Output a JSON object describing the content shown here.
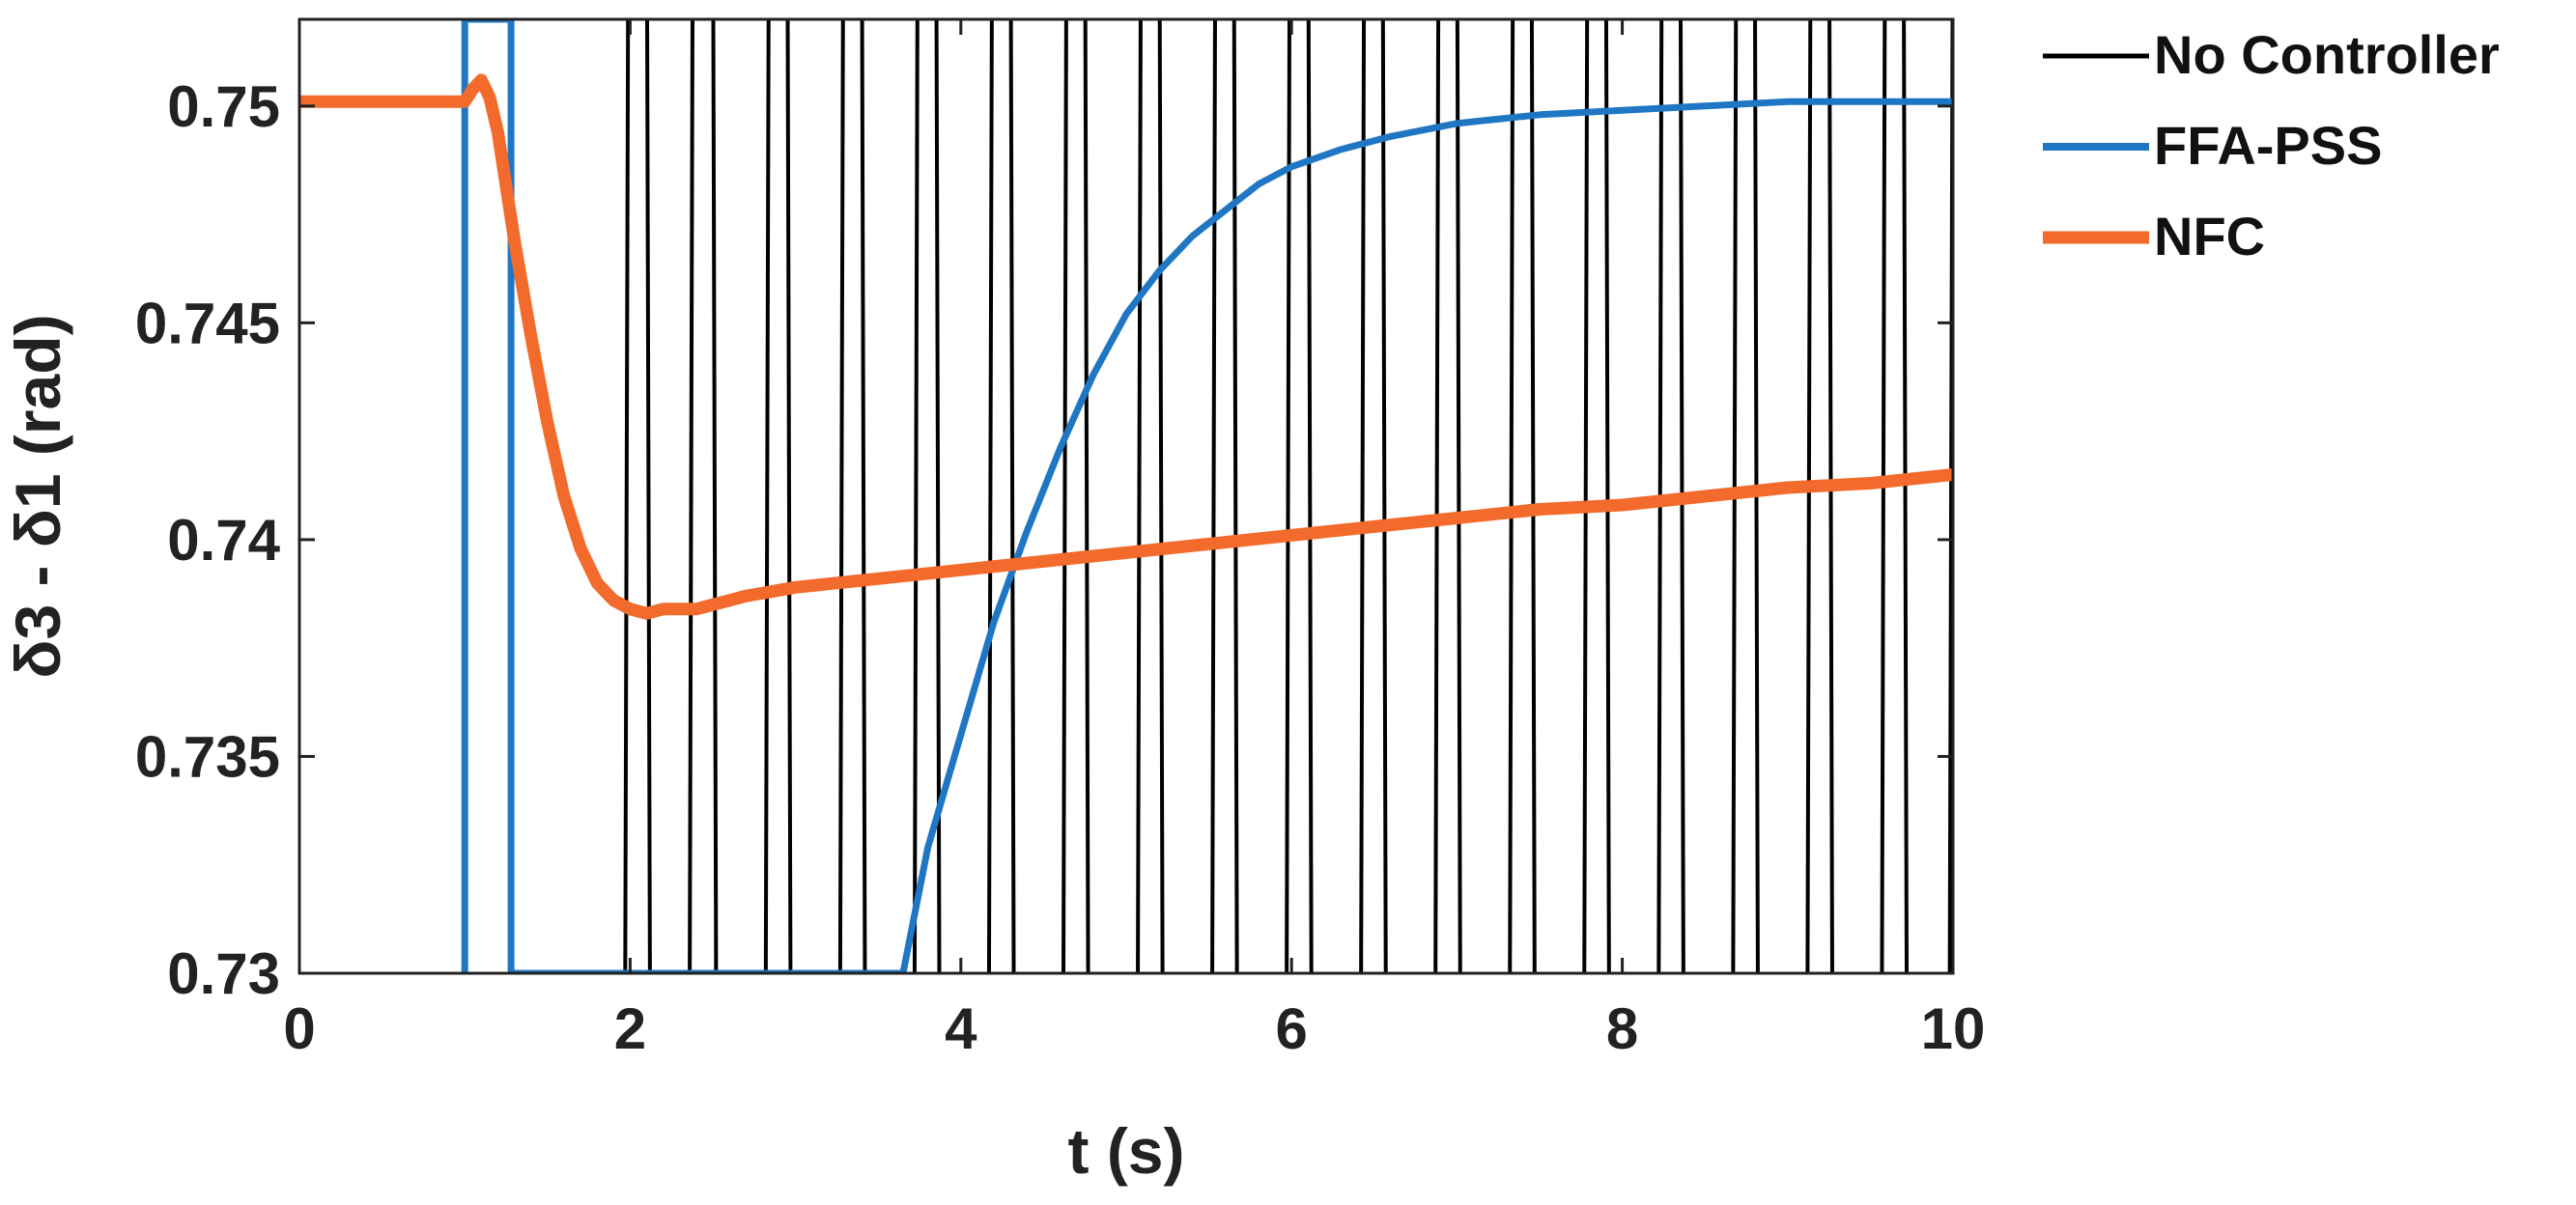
{
  "chart_data": {
    "type": "line",
    "title": "",
    "xlabel": "t (s)",
    "ylabel": "δ3 - δ1 (rad)",
    "xlim": [
      0,
      10
    ],
    "ylim": [
      0.73,
      0.752
    ],
    "xticks": [
      0,
      2,
      4,
      6,
      8,
      10
    ],
    "yticks": [
      0.73,
      0.735,
      0.74,
      0.745,
      0.75
    ],
    "xtick_labels": [
      "0",
      "2",
      "4",
      "6",
      "8",
      "10"
    ],
    "ytick_labels": [
      "0.73",
      "0.735",
      "0.74",
      "0.745",
      "0.75"
    ],
    "grid": false,
    "legend_position": "outside-right-top",
    "series": [
      {
        "name": "No Controller",
        "color": "#000000",
        "style": "vertical-oscillation",
        "crossings_x": [
          1.97,
          2.12,
          2.36,
          2.52,
          2.82,
          2.97,
          3.27,
          3.42,
          3.72,
          3.87,
          4.17,
          4.32,
          4.62,
          4.77,
          5.07,
          5.22,
          5.52,
          5.67,
          5.97,
          6.12,
          6.42,
          6.57,
          6.87,
          7.02,
          7.32,
          7.47,
          7.77,
          7.92,
          8.22,
          8.37,
          8.67,
          8.82,
          9.12,
          9.27,
          9.57,
          9.72,
          9.98
        ]
      },
      {
        "name": "FFA-PSS",
        "color": "#1f77c4",
        "x": [
          1.0,
          1.0,
          1.28,
          1.28,
          3.65,
          3.8,
          4.0,
          4.2,
          4.4,
          4.6,
          4.8,
          5.0,
          5.2,
          5.4,
          5.6,
          5.8,
          6.0,
          6.3,
          6.6,
          7.0,
          7.5,
          8.0,
          8.5,
          9.0,
          10.0
        ],
        "y": [
          0.73,
          0.752,
          0.752,
          0.73,
          0.73,
          0.7329,
          0.7355,
          0.7381,
          0.7402,
          0.7421,
          0.7438,
          0.7452,
          0.7462,
          0.747,
          0.7476,
          0.7482,
          0.7486,
          0.749,
          0.7493,
          0.7496,
          0.7498,
          0.7499,
          0.75,
          0.7501,
          0.7501
        ]
      },
      {
        "name": "NFC",
        "color": "#f26b2c",
        "x": [
          0,
          0.5,
          1.0,
          1.05,
          1.1,
          1.15,
          1.2,
          1.3,
          1.4,
          1.5,
          1.6,
          1.7,
          1.8,
          1.9,
          2.0,
          2.1,
          2.2,
          2.3,
          2.4,
          2.5,
          2.7,
          3.0,
          3.5,
          4.0,
          4.5,
          5.0,
          5.5,
          6.0,
          6.5,
          7.0,
          7.5,
          8.0,
          8.5,
          9.0,
          9.5,
          10.0
        ],
        "y": [
          0.7501,
          0.7501,
          0.7501,
          0.7504,
          0.7506,
          0.7502,
          0.7494,
          0.7469,
          0.7447,
          0.7427,
          0.741,
          0.7398,
          0.739,
          0.7386,
          0.7384,
          0.7383,
          0.7384,
          0.7384,
          0.7384,
          0.7385,
          0.7387,
          0.7389,
          0.7391,
          0.7393,
          0.7395,
          0.7397,
          0.7399,
          0.7401,
          0.7403,
          0.7405,
          0.7407,
          0.7408,
          0.741,
          0.7412,
          0.7413,
          0.7415
        ]
      }
    ]
  }
}
